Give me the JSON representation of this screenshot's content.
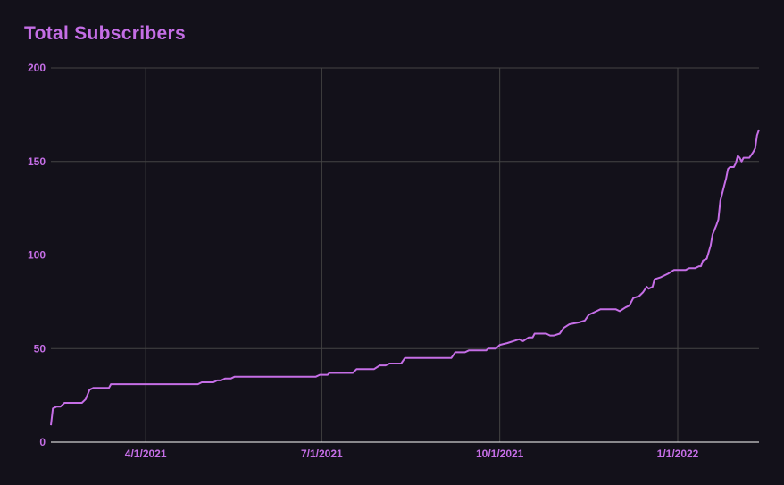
{
  "chart_data": {
    "type": "line",
    "title": "Total Subscribers",
    "xlabel": "",
    "ylabel": "",
    "ylim": [
      0,
      200
    ],
    "yticks": [
      0,
      50,
      100,
      150,
      200
    ],
    "xticks": [
      "4/1/2021",
      "7/1/2021",
      "10/1/2021",
      "1/1/2022"
    ],
    "grid": true,
    "colors": {
      "background": "#13111a",
      "line": "#c56ee6",
      "grid": "#444444",
      "axis": "#ffffff"
    },
    "x": [
      "2021-02-11",
      "2021-02-12",
      "2021-02-14",
      "2021-02-16",
      "2021-02-18",
      "2021-02-27",
      "2021-03-01",
      "2021-03-03",
      "2021-03-05",
      "2021-03-13",
      "2021-03-14",
      "2021-04-28",
      "2021-04-30",
      "2021-05-06",
      "2021-05-08",
      "2021-05-10",
      "2021-05-12",
      "2021-05-15",
      "2021-05-17",
      "2021-06-28",
      "2021-06-30",
      "2021-07-04",
      "2021-07-05",
      "2021-07-17",
      "2021-07-19",
      "2021-07-28",
      "2021-07-31",
      "2021-08-03",
      "2021-08-05",
      "2021-08-11",
      "2021-08-13",
      "2021-09-06",
      "2021-09-08",
      "2021-09-13",
      "2021-09-15",
      "2021-09-24",
      "2021-09-25",
      "2021-09-29",
      "2021-10-01",
      "2021-10-05",
      "2021-10-08",
      "2021-10-11",
      "2021-10-13",
      "2021-10-16",
      "2021-10-18",
      "2021-10-19",
      "2021-10-25",
      "2021-10-27",
      "2021-10-29",
      "2021-11-01",
      "2021-11-03",
      "2021-11-06",
      "2021-11-11",
      "2021-11-14",
      "2021-11-16",
      "2021-11-20",
      "2021-11-22",
      "2021-11-30",
      "2021-12-02",
      "2021-12-05",
      "2021-12-07",
      "2021-12-09",
      "2021-12-12",
      "2021-12-14",
      "2021-12-16",
      "2021-12-17",
      "2021-12-19",
      "2021-12-20",
      "2021-12-23",
      "2021-12-27",
      "2021-12-30",
      "2022-01-05",
      "2022-01-07",
      "2022-01-10",
      "2022-01-12",
      "2022-01-13",
      "2022-01-14",
      "2022-01-16",
      "2022-01-18",
      "2022-01-19",
      "2022-01-21",
      "2022-01-22",
      "2022-01-23",
      "2022-01-25",
      "2022-01-26",
      "2022-01-27",
      "2022-01-28",
      "2022-01-30",
      "2022-01-31",
      "2022-02-01",
      "2022-02-02",
      "2022-02-03",
      "2022-02-04",
      "2022-02-07",
      "2022-02-09",
      "2022-02-10",
      "2022-02-11",
      "2022-02-12"
    ],
    "values": [
      9,
      18,
      19,
      19,
      21,
      21,
      23,
      28,
      29,
      29,
      31,
      31,
      32,
      32,
      33,
      33,
      34,
      34,
      35,
      35,
      36,
      36,
      37,
      37,
      39,
      39,
      41,
      41,
      42,
      42,
      45,
      45,
      48,
      48,
      49,
      49,
      50,
      50,
      52,
      53,
      54,
      55,
      54,
      56,
      56,
      58,
      58,
      57,
      57,
      58,
      61,
      63,
      64,
      65,
      68,
      70,
      71,
      71,
      70,
      72,
      73,
      77,
      78,
      80,
      83,
      82,
      83,
      87,
      88,
      90,
      92,
      92,
      93,
      93,
      94,
      94,
      97,
      98,
      105,
      111,
      116,
      119,
      129,
      137,
      141,
      146,
      147,
      147,
      149,
      153,
      152,
      150,
      152,
      152,
      155,
      157,
      164,
      167
    ]
  }
}
